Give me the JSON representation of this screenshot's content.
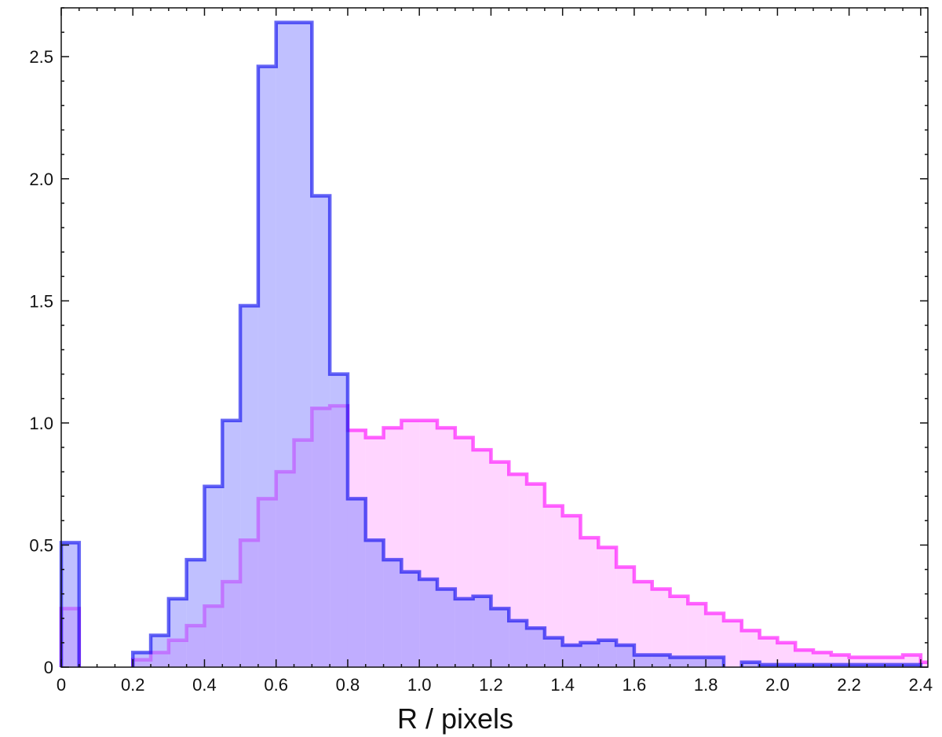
{
  "chart_data": {
    "type": "histogram",
    "xlabel": "R / pixels",
    "ylabel": "",
    "xlim": [
      0,
      2.42
    ],
    "ylim": [
      0,
      2.7
    ],
    "grid": false,
    "legend": "none",
    "bin_width": 0.05,
    "x_ticks": [
      {
        "value": 0,
        "label": "0"
      },
      {
        "value": 0.2,
        "label": "0.2"
      },
      {
        "value": 0.4,
        "label": "0.4"
      },
      {
        "value": 0.6,
        "label": "0.6"
      },
      {
        "value": 0.8,
        "label": "0.8"
      },
      {
        "value": 1.0,
        "label": "1.0"
      },
      {
        "value": 1.2,
        "label": "1.2"
      },
      {
        "value": 1.4,
        "label": "1.4"
      },
      {
        "value": 1.6,
        "label": "1.6"
      },
      {
        "value": 1.8,
        "label": "1.8"
      },
      {
        "value": 2.0,
        "label": "2.0"
      },
      {
        "value": 2.2,
        "label": "2.2"
      },
      {
        "value": 2.4,
        "label": "2.4"
      }
    ],
    "y_ticks": [
      {
        "value": 0,
        "label": "0"
      },
      {
        "value": 0.5,
        "label": "0.5"
      },
      {
        "value": 1.0,
        "label": "1.0"
      },
      {
        "value": 1.5,
        "label": "1.5"
      },
      {
        "value": 2.0,
        "label": "2.0"
      },
      {
        "value": 2.5,
        "label": "2.5"
      }
    ],
    "series": [
      {
        "color": "#ff00ff",
        "fill": "#ffb3ff",
        "bins": [
          [
            0.0,
            0.05,
            0.24
          ],
          [
            0.2,
            0.25,
            0.03
          ],
          [
            0.25,
            0.3,
            0.06
          ],
          [
            0.3,
            0.35,
            0.11
          ],
          [
            0.35,
            0.4,
            0.17
          ],
          [
            0.4,
            0.45,
            0.25
          ],
          [
            0.45,
            0.5,
            0.35
          ],
          [
            0.5,
            0.55,
            0.52
          ],
          [
            0.55,
            0.6,
            0.69
          ],
          [
            0.6,
            0.65,
            0.8
          ],
          [
            0.65,
            0.7,
            0.93
          ],
          [
            0.7,
            0.75,
            1.06
          ],
          [
            0.75,
            0.8,
            1.07
          ],
          [
            0.8,
            0.85,
            0.97
          ],
          [
            0.85,
            0.9,
            0.94
          ],
          [
            0.9,
            0.95,
            0.98
          ],
          [
            0.95,
            1.0,
            1.01
          ],
          [
            1.0,
            1.05,
            1.01
          ],
          [
            1.05,
            1.1,
            0.98
          ],
          [
            1.1,
            1.15,
            0.94
          ],
          [
            1.15,
            1.2,
            0.89
          ],
          [
            1.2,
            1.25,
            0.84
          ],
          [
            1.25,
            1.3,
            0.79
          ],
          [
            1.3,
            1.35,
            0.75
          ],
          [
            1.35,
            1.4,
            0.66
          ],
          [
            1.4,
            1.45,
            0.62
          ],
          [
            1.45,
            1.5,
            0.53
          ],
          [
            1.5,
            1.55,
            0.49
          ],
          [
            1.55,
            1.6,
            0.41
          ],
          [
            1.6,
            1.65,
            0.35
          ],
          [
            1.65,
            1.7,
            0.32
          ],
          [
            1.7,
            1.75,
            0.29
          ],
          [
            1.75,
            1.8,
            0.26
          ],
          [
            1.8,
            1.85,
            0.22
          ],
          [
            1.85,
            1.9,
            0.19
          ],
          [
            1.9,
            1.95,
            0.15
          ],
          [
            1.95,
            2.0,
            0.12
          ],
          [
            2.0,
            2.05,
            0.1
          ],
          [
            2.05,
            2.1,
            0.07
          ],
          [
            2.1,
            2.15,
            0.06
          ],
          [
            2.15,
            2.2,
            0.05
          ],
          [
            2.2,
            2.25,
            0.04
          ],
          [
            2.25,
            2.3,
            0.04
          ],
          [
            2.3,
            2.35,
            0.04
          ],
          [
            2.35,
            2.4,
            0.05
          ],
          [
            2.4,
            2.42,
            0.02
          ]
        ]
      },
      {
        "color": "#0000ee",
        "fill": "#8c8cff",
        "bins": [
          [
            0.0,
            0.05,
            0.51
          ],
          [
            0.2,
            0.25,
            0.06
          ],
          [
            0.25,
            0.3,
            0.13
          ],
          [
            0.3,
            0.35,
            0.28
          ],
          [
            0.35,
            0.4,
            0.44
          ],
          [
            0.4,
            0.45,
            0.74
          ],
          [
            0.45,
            0.5,
            1.01
          ],
          [
            0.5,
            0.55,
            1.48
          ],
          [
            0.55,
            0.6,
            2.46
          ],
          [
            0.6,
            0.65,
            2.64
          ],
          [
            0.65,
            0.7,
            2.64
          ],
          [
            0.7,
            0.75,
            1.93
          ],
          [
            0.75,
            0.8,
            1.2
          ],
          [
            0.8,
            0.85,
            0.69
          ],
          [
            0.85,
            0.9,
            0.52
          ],
          [
            0.9,
            0.95,
            0.44
          ],
          [
            0.95,
            1.0,
            0.39
          ],
          [
            1.0,
            1.05,
            0.36
          ],
          [
            1.05,
            1.1,
            0.32
          ],
          [
            1.1,
            1.15,
            0.28
          ],
          [
            1.15,
            1.2,
            0.29
          ],
          [
            1.2,
            1.25,
            0.24
          ],
          [
            1.25,
            1.3,
            0.19
          ],
          [
            1.3,
            1.35,
            0.16
          ],
          [
            1.35,
            1.4,
            0.12
          ],
          [
            1.4,
            1.45,
            0.09
          ],
          [
            1.45,
            1.5,
            0.1
          ],
          [
            1.5,
            1.55,
            0.11
          ],
          [
            1.55,
            1.6,
            0.09
          ],
          [
            1.6,
            1.65,
            0.05
          ],
          [
            1.65,
            1.7,
            0.05
          ],
          [
            1.7,
            1.75,
            0.04
          ],
          [
            1.75,
            1.8,
            0.04
          ],
          [
            1.8,
            1.85,
            0.04
          ],
          [
            1.9,
            1.95,
            0.02
          ],
          [
            1.95,
            2.0,
            0.01
          ],
          [
            2.0,
            2.05,
            0.01
          ],
          [
            2.05,
            2.1,
            0.01
          ],
          [
            2.1,
            2.15,
            0.01
          ],
          [
            2.15,
            2.2,
            0.01
          ],
          [
            2.2,
            2.25,
            0.01
          ],
          [
            2.25,
            2.3,
            0.01
          ],
          [
            2.3,
            2.35,
            0.01
          ],
          [
            2.35,
            2.4,
            0.01
          ]
        ]
      }
    ]
  }
}
